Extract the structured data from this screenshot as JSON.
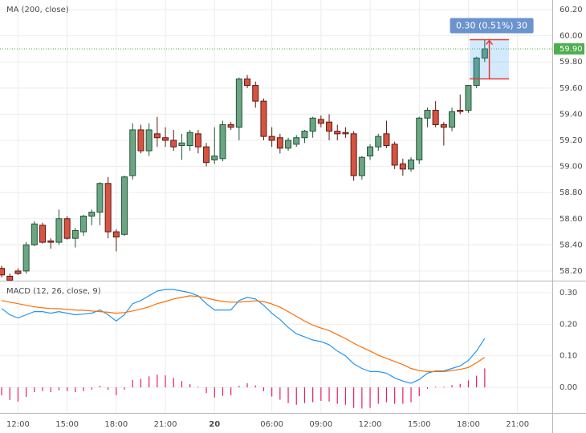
{
  "chart_data": [
    {
      "type": "candlestick",
      "title": "MA (200, close)",
      "up_color": "#6ba583",
      "down_color": "#d75442",
      "open": [
        58.22,
        58.16,
        58.2,
        58.2,
        58.4,
        58.55,
        58.43,
        58.42,
        58.6,
        58.45,
        58.5,
        58.62,
        58.65,
        58.87,
        58.5,
        58.48,
        58.93,
        59.28,
        59.12,
        59.25,
        59.22,
        59.2,
        59.16,
        59.16,
        59.25,
        59.15,
        59.05,
        59.06,
        59.32,
        59.3,
        59.67,
        59.62,
        59.5,
        59.23,
        59.22,
        59.14,
        59.17,
        59.22,
        59.27,
        59.36,
        59.34,
        59.27,
        59.26,
        59.25,
        58.93,
        59.08,
        59.15,
        59.25,
        59.17,
        59.02,
        58.98,
        59.05,
        59.37,
        59.43,
        59.32,
        59.3,
        59.43,
        59.43,
        59.62,
        59.83
      ],
      "high": [
        58.24,
        58.18,
        58.22,
        58.42,
        58.58,
        58.57,
        58.45,
        58.67,
        58.62,
        58.53,
        58.63,
        58.67,
        58.88,
        58.92,
        58.52,
        58.93,
        59.33,
        59.32,
        59.33,
        59.38,
        59.3,
        59.28,
        59.25,
        59.28,
        59.28,
        59.18,
        59.3,
        59.35,
        59.34,
        59.68,
        59.7,
        59.65,
        59.52,
        59.3,
        59.25,
        59.22,
        59.24,
        59.28,
        59.38,
        59.39,
        59.4,
        59.32,
        59.3,
        59.27,
        59.08,
        59.17,
        59.25,
        59.35,
        59.19,
        59.06,
        59.07,
        59.38,
        59.45,
        59.5,
        59.34,
        59.45,
        59.55,
        59.62,
        59.84,
        59.97
      ],
      "low": [
        58.15,
        58.12,
        58.17,
        58.18,
        58.39,
        58.41,
        58.37,
        58.4,
        58.44,
        58.38,
        58.47,
        58.55,
        58.55,
        58.45,
        58.35,
        58.47,
        58.9,
        59.1,
        59.08,
        59.15,
        59.15,
        59.12,
        59.05,
        59.12,
        59.1,
        59.0,
        59.02,
        59.04,
        59.28,
        59.2,
        59.6,
        59.45,
        59.2,
        59.15,
        59.1,
        59.12,
        59.15,
        59.18,
        59.22,
        59.3,
        59.2,
        59.2,
        59.22,
        58.89,
        58.9,
        59.05,
        59.12,
        59.14,
        58.98,
        58.93,
        58.96,
        59.02,
        59.3,
        59.3,
        59.16,
        59.27,
        59.4,
        59.41,
        59.6,
        59.8
      ],
      "close": [
        58.17,
        58.13,
        58.18,
        58.4,
        58.56,
        58.42,
        58.42,
        58.6,
        58.45,
        58.51,
        58.62,
        58.65,
        58.87,
        58.5,
        58.46,
        58.92,
        59.28,
        59.12,
        59.28,
        59.22,
        59.2,
        59.15,
        59.18,
        59.26,
        59.15,
        59.03,
        59.08,
        59.32,
        59.3,
        59.67,
        59.62,
        59.5,
        59.23,
        59.2,
        59.14,
        59.2,
        59.22,
        59.27,
        59.37,
        59.33,
        59.27,
        59.25,
        59.25,
        58.93,
        59.07,
        59.15,
        59.23,
        59.16,
        59.01,
        58.98,
        59.05,
        59.37,
        59.43,
        59.32,
        59.3,
        59.42,
        59.42,
        59.62,
        59.83,
        59.9
      ],
      "ylim": [
        58.126,
        60.274
      ],
      "xlim": [
        -0.2,
        67.25
      ],
      "yticks": [
        {
          "value": 58.2,
          "label": "58.20"
        },
        {
          "value": 58.4,
          "label": "58.40"
        },
        {
          "value": 58.6,
          "label": "58.60"
        },
        {
          "value": 58.8,
          "label": "58.80"
        },
        {
          "value": 59.0,
          "label": "59.00"
        },
        {
          "value": 59.2,
          "label": "59.20"
        },
        {
          "value": 59.4,
          "label": "59.40"
        },
        {
          "value": 59.6,
          "label": "59.60"
        },
        {
          "value": 59.8,
          "label": "59.80"
        },
        {
          "value": 60.0,
          "label": "60.00"
        },
        {
          "value": 60.2,
          "label": "60.20"
        }
      ],
      "last_price": {
        "value": 59.9,
        "label": "59.90"
      },
      "measure": {
        "from": 59.67,
        "to": 59.97,
        "label": "0.30 (0.51%) 30"
      }
    },
    {
      "type": "macd",
      "title": "MACD (12, 26, close, 9)",
      "series": [
        {
          "color": "#2196f3",
          "values": [
            0.25,
            0.23,
            0.22,
            0.23,
            0.24,
            0.24,
            0.235,
            0.24,
            0.235,
            0.23,
            0.232,
            0.235,
            0.245,
            0.23,
            0.21,
            0.23,
            0.265,
            0.275,
            0.29,
            0.305,
            0.31,
            0.31,
            0.305,
            0.3,
            0.29,
            0.265,
            0.245,
            0.245,
            0.245,
            0.275,
            0.285,
            0.28,
            0.26,
            0.235,
            0.215,
            0.19,
            0.17,
            0.16,
            0.15,
            0.145,
            0.135,
            0.115,
            0.1,
            0.075,
            0.06,
            0.05,
            0.05,
            0.045,
            0.03,
            0.02,
            0.013,
            0.025,
            0.045,
            0.052,
            0.052,
            0.06,
            0.068,
            0.085,
            0.115,
            0.155
          ]
        },
        {
          "color": "#ff6d00",
          "values": [
            0.275,
            0.27,
            0.265,
            0.26,
            0.255,
            0.252,
            0.25,
            0.249,
            0.247,
            0.245,
            0.244,
            0.242,
            0.24,
            0.238,
            0.235,
            0.237,
            0.242,
            0.248,
            0.255,
            0.265,
            0.272,
            0.28,
            0.285,
            0.29,
            0.288,
            0.283,
            0.277,
            0.272,
            0.27,
            0.27,
            0.272,
            0.274,
            0.272,
            0.264,
            0.254,
            0.24,
            0.225,
            0.21,
            0.197,
            0.188,
            0.18,
            0.167,
            0.155,
            0.14,
            0.127,
            0.115,
            0.102,
            0.092,
            0.082,
            0.072,
            0.06,
            0.053,
            0.05,
            0.05,
            0.05,
            0.053,
            0.057,
            0.063,
            0.078,
            0.095
          ]
        }
      ],
      "histogram": {
        "color": "#e91e63",
        "values": [
          -0.025,
          -0.04,
          -0.045,
          -0.03,
          -0.015,
          -0.012,
          -0.015,
          -0.009,
          -0.012,
          -0.015,
          -0.012,
          -0.007,
          0.005,
          -0.008,
          -0.025,
          -0.007,
          0.023,
          0.027,
          0.035,
          0.04,
          0.038,
          0.03,
          0.02,
          0.01,
          0.002,
          -0.018,
          -0.032,
          -0.027,
          -0.025,
          0.005,
          0.013,
          0.006,
          -0.012,
          -0.029,
          -0.039,
          -0.05,
          -0.055,
          -0.05,
          -0.047,
          -0.043,
          -0.045,
          -0.052,
          -0.055,
          -0.065,
          -0.067,
          -0.065,
          -0.052,
          -0.047,
          -0.052,
          -0.052,
          -0.047,
          -0.028,
          -0.005,
          0.002,
          0.002,
          0.007,
          0.011,
          0.022,
          0.037,
          0.06
        ]
      },
      "ylim": [
        -0.081,
        0.338
      ],
      "xlim": [
        -0.2,
        67.25
      ],
      "yticks": [
        {
          "value": 0,
          "label": "0.00"
        },
        {
          "value": 0.1,
          "label": "0.10"
        },
        {
          "value": 0.2,
          "label": "0.20"
        },
        {
          "value": 0.3,
          "label": "0.30"
        }
      ],
      "xticks": [
        {
          "value": 2,
          "label": "12:00"
        },
        {
          "value": 8,
          "label": "15:00"
        },
        {
          "value": 14,
          "label": "18:00"
        },
        {
          "value": 20,
          "label": "21:00"
        },
        {
          "value": 26,
          "label": "20"
        },
        {
          "value": 33,
          "label": "06:00"
        },
        {
          "value": 39,
          "label": "09:00"
        },
        {
          "value": 45,
          "label": "12:00"
        },
        {
          "value": 51,
          "label": "15:00"
        },
        {
          "value": 57,
          "label": "18:00"
        },
        {
          "value": 63,
          "label": "21:00"
        }
      ]
    }
  ]
}
